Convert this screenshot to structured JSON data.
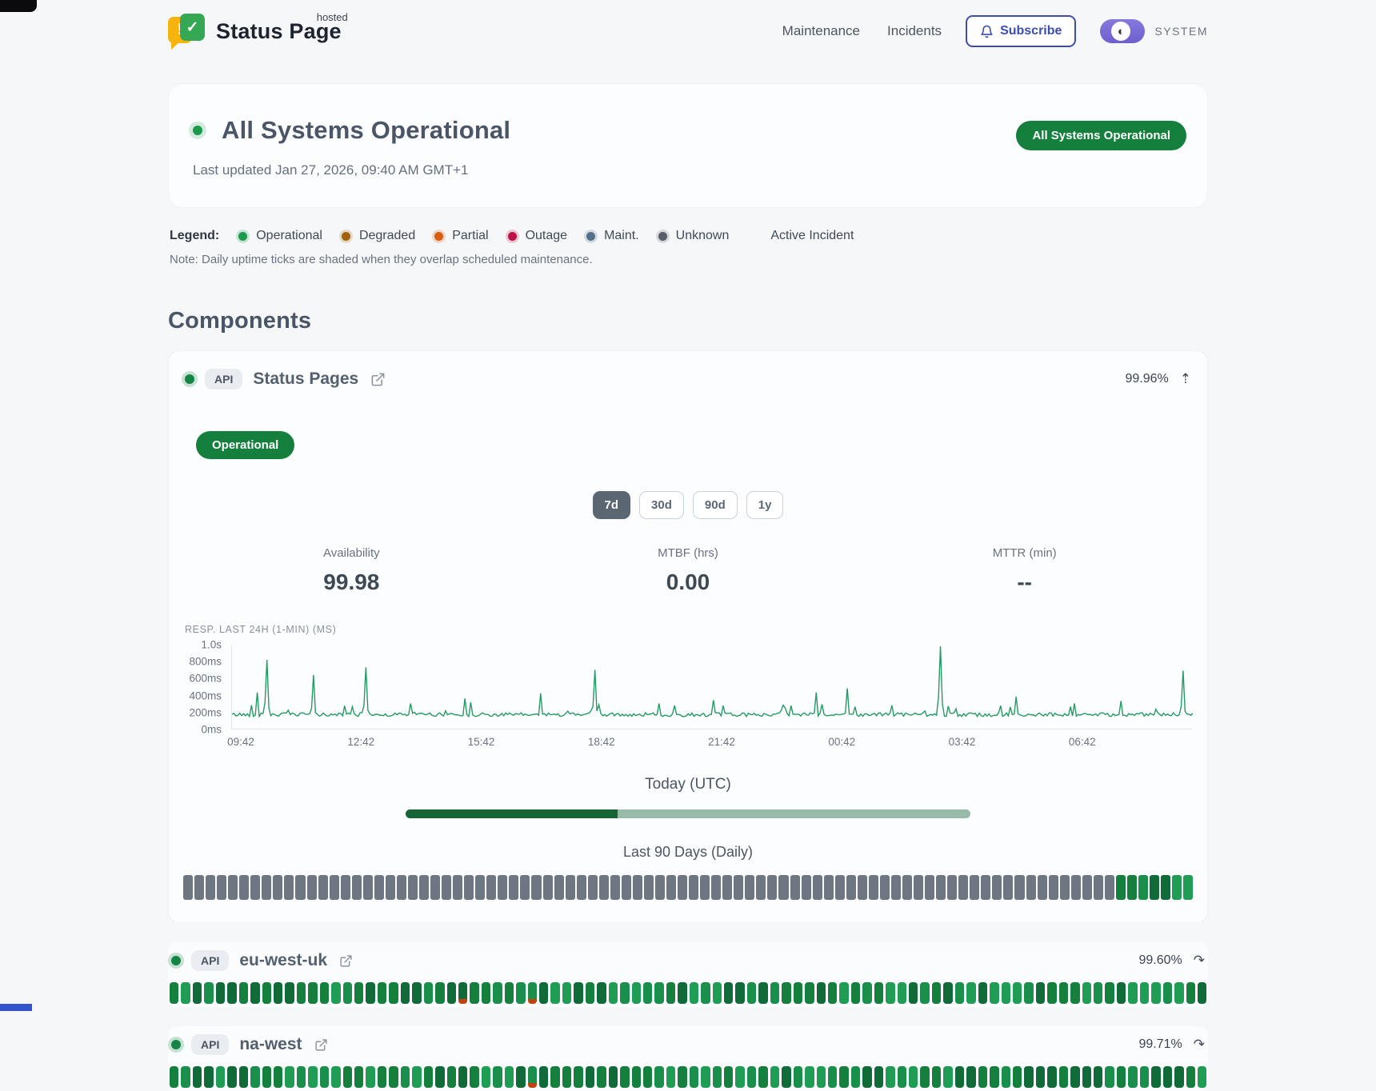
{
  "header": {
    "brand": {
      "name": "Status Page",
      "superscript": "hosted"
    },
    "nav": [
      {
        "label": "Maintenance"
      },
      {
        "label": "Incidents"
      }
    ],
    "subscribe_label": "Subscribe",
    "theme_label": "SYSTEM"
  },
  "hero": {
    "title": "All Systems Operational",
    "last_updated": "Last updated Jan 27, 2026, 09:40 AM GMT+1",
    "badge": "All Systems Operational"
  },
  "legend": {
    "label": "Legend:",
    "items": [
      {
        "label": "Operational",
        "color": "#1b9a4b"
      },
      {
        "label": "Degraded",
        "color": "#a16207"
      },
      {
        "label": "Partial",
        "color": "#d95f0e"
      },
      {
        "label": "Outage",
        "color": "#c01048"
      },
      {
        "label": "Maint.",
        "color": "#52708a"
      },
      {
        "label": "Unknown",
        "color": "#555e69"
      }
    ],
    "active_incident_label": "Active Incident",
    "note": "Note: Daily uptime ticks are shaded when they overlap scheduled maintenance."
  },
  "components": {
    "title": "Components",
    "primary": {
      "status": "operational",
      "type_badge": "API",
      "name": "Status Pages",
      "uptime_pct": "99.96%",
      "expand_icon": "⇡",
      "status_badge": "Operational",
      "ranges": [
        {
          "label": "7d",
          "active": true
        },
        {
          "label": "30d",
          "active": false
        },
        {
          "label": "90d",
          "active": false
        },
        {
          "label": "1y",
          "active": false
        }
      ],
      "stats": [
        {
          "label": "Availability",
          "value": "99.98"
        },
        {
          "label": "MTBF (hrs)",
          "value": "0.00"
        },
        {
          "label": "MTTR (min)",
          "value": "--"
        }
      ],
      "today": {
        "label": "Today (UTC)",
        "progress_pct": 37.5,
        "bar_fill_color": "#166534",
        "bar_rest_color": "#97bba8"
      },
      "history": {
        "label": "Last 90 Days (Daily)",
        "segments": [
          {
            "state": "unknown",
            "count": 83
          },
          {
            "state": "operational",
            "count": 7
          }
        ],
        "unknown_color": "#6e7681"
      }
    },
    "rows": [
      {
        "status": "operational",
        "type_badge": "API",
        "name": "eu-west-uk",
        "uptime_pct": "99.60%",
        "expand_icon": "↷",
        "ticks": {
          "count": 90,
          "state": "operational",
          "incident_indices": [
            25,
            31
          ]
        }
      },
      {
        "status": "operational",
        "type_badge": "API",
        "name": "na-west",
        "uptime_pct": "99.71%",
        "expand_icon": "↷",
        "ticks": {
          "count": 90,
          "state": "operational",
          "incident_indices": [
            31
          ]
        }
      }
    ],
    "tick_green_shades": [
      "#15803d",
      "#1f9d55",
      "#116b38",
      "#1a8f4c"
    ],
    "tick_incident_color": "#c2410c"
  },
  "chart_data": {
    "type": "line",
    "title": "RESP. LAST 24H (1-MIN) (MS)",
    "line_color": "#259b62",
    "x_tick_labels": [
      "09:42",
      "12:42",
      "15:42",
      "18:42",
      "21:42",
      "00:42",
      "03:42",
      "06:42"
    ],
    "y_tick_labels": [
      "1.0s",
      "800ms",
      "600ms",
      "400ms",
      "200ms",
      "0ms"
    ],
    "y_tick_values_ms": [
      1000,
      800,
      600,
      400,
      200,
      0
    ],
    "y_range_ms": [
      0,
      1000
    ],
    "baseline_range_ms": [
      145,
      210
    ],
    "spikes_frac_ms": [
      [
        0.026,
        430
      ],
      [
        0.037,
        820
      ],
      [
        0.084,
        640
      ],
      [
        0.14,
        730
      ],
      [
        0.185,
        300
      ],
      [
        0.242,
        360
      ],
      [
        0.321,
        420
      ],
      [
        0.378,
        700
      ],
      [
        0.444,
        300
      ],
      [
        0.501,
        340
      ],
      [
        0.609,
        430
      ],
      [
        0.641,
        480
      ],
      [
        0.738,
        980
      ],
      [
        0.816,
        380
      ],
      [
        0.877,
        300
      ],
      [
        0.925,
        330
      ],
      [
        0.99,
        690
      ]
    ],
    "grid": false,
    "legend_position": "none"
  }
}
